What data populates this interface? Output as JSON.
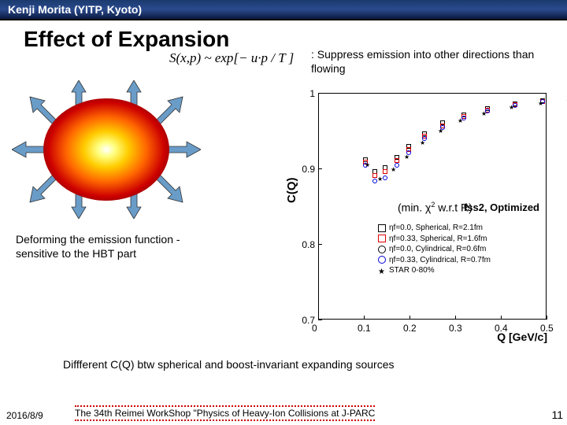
{
  "header": "Kenji Morita (YITP, Kyoto)",
  "title": "Effect of Expansion",
  "formula": "S(x,p) ~ exp[− u·p / T ]",
  "caption1": ": Suppress emission into other directions than flowing",
  "chi2_text": "(min. χ",
  "chi2_sup": "2",
  "chi2_rest": " w.r.t R)",
  "caption2": "Deforming the emission function - sensitive to the HBT part",
  "caption3": "Diffferent C(Q) btw spherical and boost-invariant expanding sources",
  "footer_date": "2016/8/9",
  "footer_text": "The 34th Reimei WorkShop \"Physics of Heavy-Ion Collisions at J-PARC",
  "page_num": "11",
  "chart": {
    "ylabel": "C(Q)",
    "xlabel": "Q [GeV/c]",
    "fss_label": "fss2, Optimized",
    "yticks": [
      {
        "v": "1",
        "p": 0
      },
      {
        "v": "0.9",
        "p": 96
      },
      {
        "v": "0.8",
        "p": 192
      },
      {
        "v": "0.7",
        "p": 288
      }
    ],
    "xticks": [
      {
        "v": "0",
        "p": 44
      },
      {
        "v": "0.1",
        "p": 102
      },
      {
        "v": "0.2",
        "p": 160
      },
      {
        "v": "0.3",
        "p": 218
      },
      {
        "v": "0.4",
        "p": 276
      },
      {
        "v": "0.5",
        "p": 334
      }
    ],
    "legend": [
      {
        "label": "ηf=0.0, Spherical, R=2.1fm",
        "color": "#000",
        "shape": "sq-open"
      },
      {
        "label": "ηf=0.33, Spherical, R=1.6fm",
        "color": "#d00",
        "shape": "sq-open"
      },
      {
        "label": "ηf=0.0, Cylindrical, R=0.6fm",
        "color": "#000",
        "shape": "circ"
      },
      {
        "label": "ηf=0.33, Cylindrical, R=0.7fm",
        "color": "#00d",
        "shape": "circ"
      },
      {
        "label": "STAR 0-80%",
        "color": "#000",
        "shape": "star"
      }
    ],
    "data_series": [
      {
        "color": "#000",
        "type": "sq",
        "pts": [
          [
            60,
            85
          ],
          [
            72,
            100
          ],
          [
            85,
            95
          ],
          [
            100,
            82
          ],
          [
            115,
            68
          ],
          [
            135,
            52
          ],
          [
            158,
            38
          ],
          [
            185,
            28
          ],
          [
            215,
            20
          ],
          [
            250,
            14
          ],
          [
            285,
            10
          ],
          [
            320,
            7
          ]
        ]
      },
      {
        "color": "#d00",
        "type": "sq",
        "pts": [
          [
            60,
            88
          ],
          [
            72,
            105
          ],
          [
            85,
            100
          ],
          [
            100,
            86
          ],
          [
            115,
            72
          ],
          [
            135,
            55
          ],
          [
            158,
            42
          ],
          [
            185,
            30
          ],
          [
            215,
            22
          ],
          [
            250,
            15
          ],
          [
            285,
            11
          ],
          [
            320,
            8
          ]
        ]
      },
      {
        "color": "#00d",
        "type": "circ",
        "pts": [
          [
            60,
            92
          ],
          [
            72,
            112
          ],
          [
            85,
            108
          ],
          [
            100,
            92
          ],
          [
            115,
            76
          ],
          [
            135,
            58
          ],
          [
            158,
            44
          ],
          [
            185,
            32
          ],
          [
            215,
            23
          ],
          [
            250,
            16
          ],
          [
            285,
            11
          ],
          [
            320,
            8
          ]
        ]
      },
      {
        "color": "#000",
        "type": "star",
        "pts": [
          [
            62,
            90
          ],
          [
            78,
            108
          ],
          [
            95,
            96
          ],
          [
            112,
            80
          ],
          [
            132,
            62
          ],
          [
            155,
            47
          ],
          [
            180,
            34
          ],
          [
            210,
            25
          ],
          [
            245,
            17
          ],
          [
            282,
            12
          ],
          [
            318,
            9
          ]
        ]
      }
    ]
  }
}
